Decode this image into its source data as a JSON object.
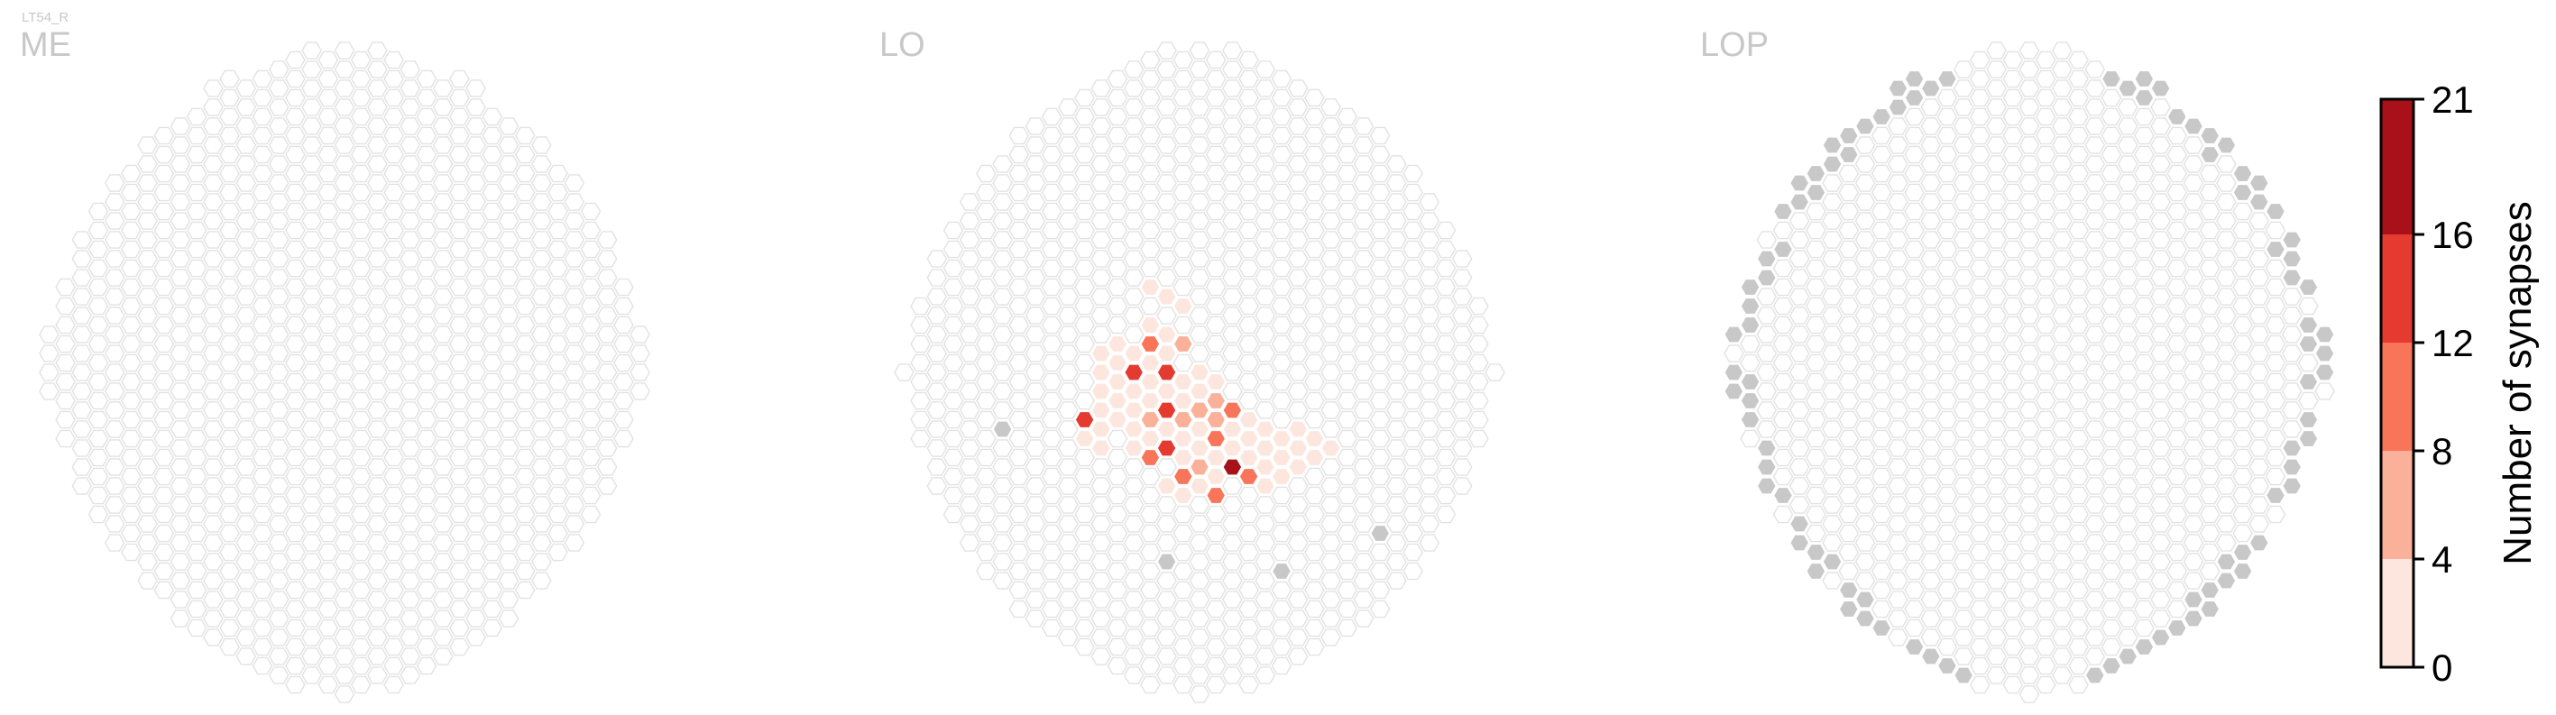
{
  "figure": {
    "title": "LT54_R"
  },
  "chart_data": {
    "type": "heatmap",
    "title": "LT54_R",
    "colorbar": {
      "label": "Number of synapses",
      "ticks": [
        0,
        4,
        8,
        12,
        16,
        21
      ],
      "range": [
        0,
        21
      ],
      "bin_colors": [
        "#fde6dd",
        "#fbb09a",
        "#f97559",
        "#e53a2f",
        "#a81119"
      ]
    },
    "colors": {
      "empty": "#ffffff",
      "empty_stroke": "#e2e2e2",
      "outside": "#c8c8c8"
    },
    "panels": [
      {
        "name": "ME",
        "data": []
      },
      {
        "name": "LO",
        "data": [
          [
            -3,
            9,
            2
          ],
          [
            -2,
            8,
            1
          ],
          [
            -1,
            7,
            3
          ],
          [
            -4,
            5,
            2
          ],
          [
            -3,
            5,
            1
          ],
          [
            -2,
            4,
            3
          ],
          [
            -3,
            4,
            2
          ],
          [
            -1,
            3,
            6
          ],
          [
            -2,
            3,
            2
          ],
          [
            -3,
            3,
            10
          ],
          [
            -4,
            3,
            1
          ],
          [
            -5,
            4,
            1
          ],
          [
            -5,
            3,
            2
          ],
          [
            -6,
            3,
            1
          ],
          [
            -4,
            2,
            2
          ],
          [
            -3,
            2,
            4
          ],
          [
            -2,
            2,
            1
          ],
          [
            -5,
            2,
            1
          ],
          [
            -6,
            2,
            2
          ],
          [
            -5,
            1,
            1
          ],
          [
            -4,
            1,
            1
          ],
          [
            -3,
            1,
            1
          ],
          [
            -2,
            1,
            2
          ],
          [
            -6,
            1,
            1
          ],
          [
            -3,
            0,
            20
          ],
          [
            -4,
            0,
            14
          ],
          [
            -2,
            0,
            15
          ],
          [
            -1,
            0,
            4
          ],
          [
            0,
            0,
            2
          ],
          [
            -5,
            0,
            1
          ],
          [
            -6,
            0,
            1
          ],
          [
            -2,
            -1,
            6
          ],
          [
            -1,
            -1,
            2
          ],
          [
            -3,
            -1,
            2
          ],
          [
            -4,
            -1,
            1
          ],
          [
            0,
            -1,
            2
          ],
          [
            1,
            -1,
            3
          ],
          [
            -5,
            -1,
            3
          ],
          [
            -3,
            -2,
            4
          ],
          [
            -2,
            -2,
            2
          ],
          [
            -4,
            -2,
            1
          ],
          [
            -1,
            -2,
            1
          ],
          [
            0,
            -2,
            2
          ],
          [
            1,
            -2,
            4
          ],
          [
            -6,
            -2,
            2
          ],
          [
            -2,
            -3,
            9
          ],
          [
            -1,
            -3,
            2
          ],
          [
            0,
            -3,
            5
          ],
          [
            1,
            -3,
            6
          ],
          [
            -3,
            -3,
            3
          ],
          [
            -4,
            -3,
            2
          ],
          [
            -5,
            -3,
            1
          ],
          [
            2,
            -3,
            1
          ],
          [
            -1,
            -4,
            13
          ],
          [
            -2,
            -4,
            14
          ],
          [
            0,
            -4,
            7
          ],
          [
            1,
            -4,
            8
          ],
          [
            2,
            -4,
            9
          ],
          [
            -3,
            -4,
            1
          ],
          [
            -4,
            -4,
            1
          ],
          [
            -5,
            -4,
            6
          ],
          [
            -6,
            -4,
            3
          ],
          [
            -7,
            -4,
            11
          ],
          [
            3,
            -4,
            2
          ],
          [
            -1,
            -5,
            5
          ],
          [
            0,
            -5,
            14
          ],
          [
            1,
            -5,
            6
          ],
          [
            2,
            -5,
            1
          ],
          [
            -3,
            -5,
            7
          ],
          [
            -4,
            -5,
            8
          ],
          [
            -5,
            -5,
            3
          ],
          [
            -6,
            -5,
            9
          ],
          [
            -7,
            -5,
            14
          ],
          [
            3,
            -5,
            2
          ],
          [
            4,
            -5,
            1
          ],
          [
            -2,
            -6,
            2
          ],
          [
            -1,
            -6,
            1
          ],
          [
            0,
            -6,
            3
          ],
          [
            1,
            -6,
            2
          ],
          [
            2,
            -6,
            4
          ],
          [
            3,
            -6,
            2
          ],
          [
            4,
            -6,
            3
          ],
          [
            5,
            -6,
            14
          ],
          [
            6,
            -6,
            2
          ],
          [
            -4,
            -6,
            2
          ],
          [
            -5,
            -6,
            2
          ],
          [
            -6,
            -6,
            2
          ],
          [
            -7,
            -6,
            1
          ],
          [
            -2,
            -7,
            10
          ],
          [
            -1,
            -7,
            2
          ],
          [
            0,
            -7,
            6
          ],
          [
            1,
            -7,
            10
          ],
          [
            2,
            -7,
            3
          ],
          [
            3,
            -7,
            1
          ],
          [
            4,
            -7,
            3
          ],
          [
            5,
            -7,
            2
          ],
          [
            6,
            -7,
            1
          ],
          [
            7,
            -7,
            4
          ],
          [
            -3,
            -7,
            1
          ],
          [
            -4,
            -7,
            1
          ],
          [
            -6,
            -7,
            1
          ],
          [
            -7,
            -7,
            1
          ],
          [
            -2,
            -8,
            13
          ],
          [
            -1,
            -8,
            8
          ],
          [
            0,
            -8,
            4
          ],
          [
            1,
            -8,
            2
          ],
          [
            2,
            -8,
            2
          ],
          [
            3,
            -8,
            1
          ],
          [
            4,
            -8,
            2
          ],
          [
            5,
            -8,
            3
          ],
          [
            6,
            -8,
            2
          ],
          [
            7,
            -8,
            1
          ],
          [
            8,
            -8,
            2
          ],
          [
            -3,
            -8,
            2
          ],
          [
            -4,
            -8,
            1
          ],
          [
            -6,
            -8,
            2
          ],
          [
            -2,
            -9,
            20
          ],
          [
            -1,
            -9,
            1
          ],
          [
            0,
            -9,
            10
          ],
          [
            1,
            -9,
            2
          ],
          [
            2,
            -9,
            1
          ],
          [
            3,
            -9,
            1
          ],
          [
            4,
            -9,
            2
          ],
          [
            5,
            -9,
            1
          ],
          [
            6,
            -9,
            1
          ],
          [
            7,
            -9,
            2
          ],
          [
            8,
            -9,
            2
          ],
          [
            -3,
            -9,
            9
          ],
          [
            -4,
            -9,
            1
          ],
          [
            -1,
            -10,
            1
          ],
          [
            0,
            -10,
            8
          ],
          [
            1,
            -10,
            10
          ],
          [
            2,
            -10,
            21
          ],
          [
            3,
            -10,
            2
          ],
          [
            4,
            -10,
            4
          ],
          [
            5,
            -10,
            3
          ],
          [
            6,
            -10,
            2
          ],
          [
            7,
            -10,
            1
          ],
          [
            -3,
            -10,
            1
          ],
          [
            -2,
            -11,
            11
          ],
          [
            -1,
            -11,
            9
          ],
          [
            0,
            -11,
            2
          ],
          [
            1,
            -11,
            3
          ],
          [
            2,
            -11,
            2
          ],
          [
            3,
            -11,
            11
          ],
          [
            4,
            -11,
            1
          ],
          [
            5,
            -11,
            3
          ],
          [
            6,
            -11,
            2
          ],
          [
            -2,
            -12,
            1
          ],
          [
            -1,
            -12,
            1
          ],
          [
            0,
            -12,
            2
          ],
          [
            1,
            -12,
            1
          ],
          [
            3,
            -12,
            1
          ],
          [
            4,
            -12,
            2
          ],
          [
            1,
            -13,
            10
          ],
          [
            2,
            -13,
            2
          ],
          [
            -1,
            -13,
            2
          ]
        ]
      },
      {
        "name": "LOP",
        "data": []
      }
    ]
  }
}
